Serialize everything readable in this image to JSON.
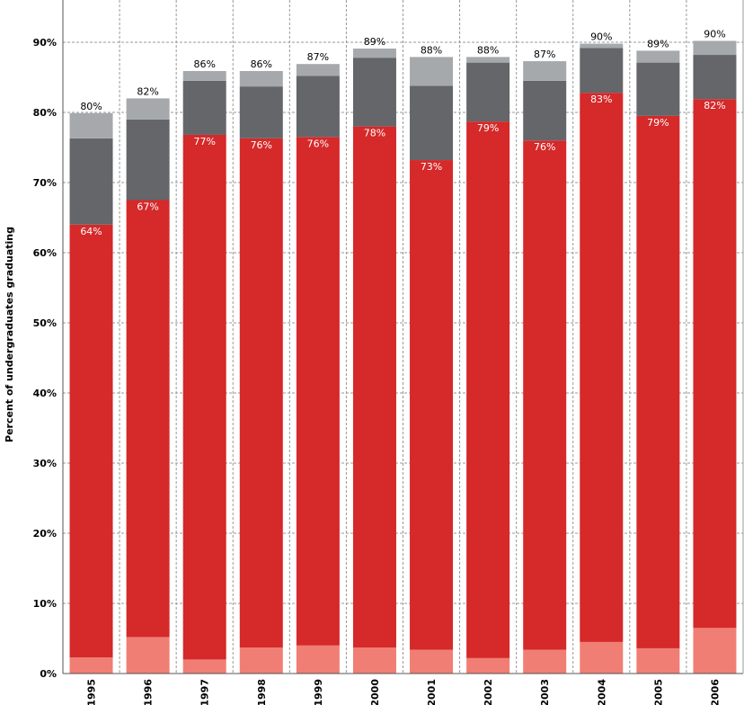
{
  "chart_data": {
    "type": "bar",
    "stacked": true,
    "title": "",
    "xlabel": "",
    "ylabel": "Percent of undergraduates graduating",
    "ylim": [
      0,
      95
    ],
    "yticks": [
      "0%",
      "10%",
      "20%",
      "30%",
      "40%",
      "50%",
      "60%",
      "70%",
      "80%",
      "90%"
    ],
    "grid": true,
    "categories": [
      "1995",
      "1996",
      "1997",
      "1998",
      "1999",
      "2000",
      "2001",
      "2002",
      "2003",
      "2004",
      "2005",
      "2006"
    ],
    "series": [
      {
        "color": "#f07e74",
        "values": [
          2.3,
          5.2,
          2.0,
          3.7,
          4.0,
          3.7,
          3.4,
          2.2,
          3.4,
          4.5,
          3.6,
          6.5
        ]
      },
      {
        "color": "#d5292a",
        "values": [
          61.7,
          62.3,
          74.8,
          72.6,
          72.5,
          74.3,
          69.8,
          76.5,
          72.6,
          78.3,
          75.9,
          75.4
        ]
      },
      {
        "color": "#646669",
        "values": [
          12.3,
          11.5,
          7.7,
          7.4,
          8.7,
          9.8,
          10.6,
          8.4,
          8.5,
          6.4,
          7.6,
          6.3
        ]
      },
      {
        "color": "#a6a9ac",
        "values": [
          3.6,
          3.0,
          1.4,
          2.2,
          1.7,
          1.3,
          4.1,
          0.8,
          2.8,
          0.6,
          1.7,
          2.0
        ]
      }
    ],
    "inner_labels": [
      "64%",
      "67%",
      "77%",
      "76%",
      "76%",
      "78%",
      "73%",
      "79%",
      "76%",
      "83%",
      "79%",
      "82%"
    ],
    "total_labels": [
      "80%",
      "82%",
      "86%",
      "86%",
      "87%",
      "89%",
      "88%",
      "88%",
      "87%",
      "90%",
      "89%",
      "90%"
    ]
  }
}
